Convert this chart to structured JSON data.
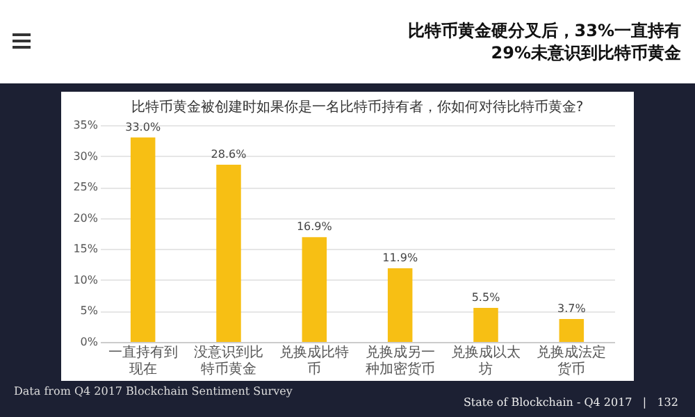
{
  "chart_data": {
    "type": "bar",
    "title": "比特币黄金硬分叉后，33%一直持有\n29%未意识到比特币黄金",
    "subtitle": "比特币黄金被创建时如果你是一名比特币持有者，你如何对待比特币黄金?",
    "categories": [
      "一直持有到现在",
      "没意识到比特币黄金",
      "兑换成比特币",
      "兑换成另一种加密货币",
      "兑换成以太坊",
      "兑换成法定货币"
    ],
    "values": [
      33.0,
      28.6,
      16.9,
      11.9,
      5.5,
      3.7
    ],
    "value_labels": [
      "33.0%",
      "28.6%",
      "16.9%",
      "11.9%",
      "5.5%",
      "3.7%"
    ],
    "color": "#f7bf14",
    "ylim": [
      0,
      35
    ],
    "yticks": [
      {
        "value": 0,
        "label": "0%"
      },
      {
        "value": 5,
        "label": "5%"
      },
      {
        "value": 10,
        "label": "10%"
      },
      {
        "value": 15,
        "label": "15%"
      },
      {
        "value": 20,
        "label": "20%"
      },
      {
        "value": 25,
        "label": "25%"
      },
      {
        "value": 30,
        "label": "30%"
      },
      {
        "value": 35,
        "label": "35%"
      }
    ],
    "grid": "y",
    "annotations": [
      "Data from Q4 2017 Blockchain Sentiment Survey",
      "State of Blockchain - Q4 2017   |   132"
    ]
  }
}
